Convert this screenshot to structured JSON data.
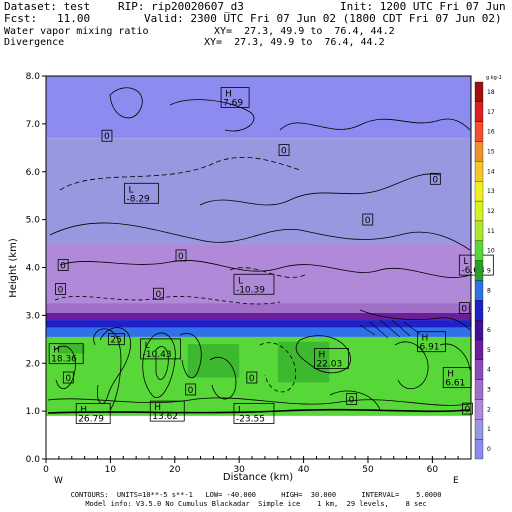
{
  "header": {
    "dataset": "Dataset: test",
    "rip": "RIP: rip20020607_d3",
    "init": "Init: 1200 UTC Fri 07 Jun 02",
    "fcst": "Fcst:   11.00",
    "valid": "Valid: 2300 UTC Fri 07 Jun 02 (1800 CDT Fri 07 Jun 02)",
    "field1": "Water vapor mixing ratio",
    "field1_xy": "XY=  27.3, 49.9 to  76.4, 44.2",
    "field2": "Divergence",
    "field2_xy": "XY=  27.3, 49.9 to  76.4, 44.2"
  },
  "chart_data": {
    "type": "heatmap",
    "xlabel": "Distance (km)",
    "ylabel": "Height (km)",
    "xlim": [
      0,
      66
    ],
    "ylim": [
      0,
      8
    ],
    "x_ticks": [
      0,
      10,
      20,
      30,
      40,
      50,
      60
    ],
    "y_ticks": [
      "0.0",
      "1.0",
      "2.0",
      "3.0",
      "4.0",
      "5.0",
      "6.0",
      "7.0",
      "8.0"
    ],
    "x_end_labels": {
      "left": "W",
      "right": "E"
    },
    "colorbar": {
      "unit_label": "g kg-1",
      "ticks": [
        0,
        1,
        2,
        3,
        4,
        5,
        6,
        7,
        8,
        9,
        10,
        11,
        12,
        13,
        14,
        15,
        16,
        17,
        18
      ],
      "colors": [
        "#8c8cf0",
        "#9898e0",
        "#b08ad8",
        "#a070c8",
        "#8c4cb8",
        "#6a1e9e",
        "#40109a",
        "#2020c8",
        "#3070e8",
        "#28a028",
        "#58d838",
        "#a8e830",
        "#d8f020",
        "#f0f020",
        "#f0c828",
        "#f09030",
        "#f05030",
        "#d82020",
        "#a01010"
      ]
    },
    "ground_height_km": 0.9,
    "layers": [
      {
        "from_km": 0.9,
        "to_km": 2.55,
        "mixing_ratio": 10
      },
      {
        "from_km": 2.55,
        "to_km": 2.9,
        "mixing_ratio": 8
      },
      {
        "from_km": 2.9,
        "to_km": 4.5,
        "mixing_ratio": 2
      },
      {
        "from_km": 4.5,
        "to_km": 6.7,
        "mixing_ratio": 1
      },
      {
        "from_km": 6.7,
        "to_km": 8.0,
        "mixing_ratio": 0
      }
    ],
    "annotations": [
      {
        "text": "H",
        "value": "7.69",
        "x": 27.5,
        "y": 7.55
      },
      {
        "text": "L",
        "value": "-8.29",
        "x": 12.5,
        "y": 5.55
      },
      {
        "text": "L",
        "value": "-10.39",
        "x": 29.5,
        "y": 3.65
      },
      {
        "text": "L",
        "value": "-6.63",
        "x": 64.5,
        "y": 4.05
      },
      {
        "text": "L",
        "value": "-10.43",
        "x": 15.0,
        "y": 2.3
      },
      {
        "text": "H",
        "value": "18.36",
        "x": 0.8,
        "y": 2.2
      },
      {
        "text": "H",
        "value": "22.03",
        "x": 42.0,
        "y": 2.1
      },
      {
        "text": "H",
        "value": "6.91",
        "x": 58.0,
        "y": 2.45
      },
      {
        "text": "H",
        "value": "6.61",
        "x": 62.0,
        "y": 1.7
      },
      {
        "text": "H",
        "value": "26.79",
        "x": 5.0,
        "y": 0.95
      },
      {
        "text": "H",
        "value": "13.62",
        "x": 16.5,
        "y": 1.0
      },
      {
        "text": "L",
        "value": "-23.55",
        "x": 29.5,
        "y": 0.95
      }
    ],
    "contour_labels": [
      {
        "text": "0",
        "x": 9.0,
        "y": 6.7
      },
      {
        "text": "0",
        "x": 36.5,
        "y": 6.4
      },
      {
        "text": "0",
        "x": 60.0,
        "y": 5.8
      },
      {
        "text": "0",
        "x": 49.5,
        "y": 4.95
      },
      {
        "text": "0",
        "x": 20.5,
        "y": 4.2
      },
      {
        "text": "0",
        "x": 1.8,
        "y": 3.5
      },
      {
        "text": "0",
        "x": 2.2,
        "y": 4.0
      },
      {
        "text": "0",
        "x": 17.0,
        "y": 3.4
      },
      {
        "text": "0",
        "x": 64.5,
        "y": 3.1
      },
      {
        "text": "25",
        "x": 10.0,
        "y": 2.45
      },
      {
        "text": "0",
        "x": 3.0,
        "y": 1.65
      },
      {
        "text": "0",
        "x": 22.0,
        "y": 1.4
      },
      {
        "text": "0",
        "x": 31.5,
        "y": 1.65
      },
      {
        "text": "0",
        "x": 47.0,
        "y": 1.2
      },
      {
        "text": "0",
        "x": 65.0,
        "y": 1.0
      }
    ]
  },
  "footer": {
    "line1": "CONTOURS:  UNITS=10**-5 s**-1   LOW= -40.000      HIGH=  30.000      INTERVAL=    5.0000",
    "line2": "Model info: V3.5.0 No Cumulus Blackadar  Simple ice    1 km,  29 levels,    8 sec"
  }
}
